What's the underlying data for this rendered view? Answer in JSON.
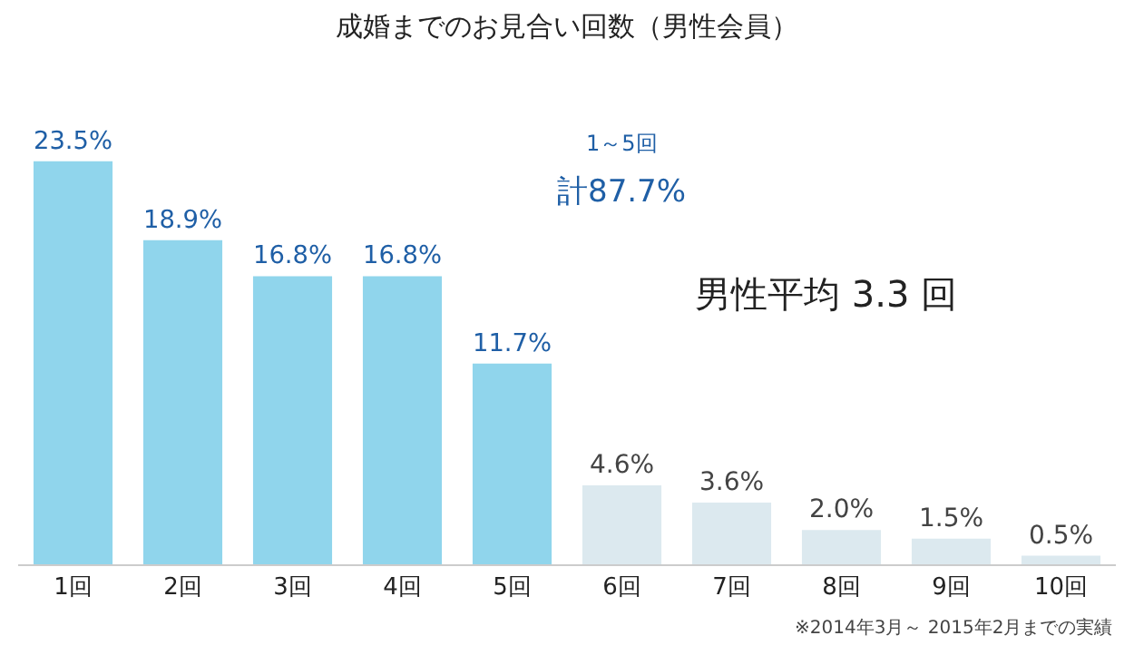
{
  "chart_data": {
    "type": "bar",
    "title": "成婚までのお見合い回数（男性会員）",
    "categories": [
      "1回",
      "2回",
      "3回",
      "4回",
      "5回",
      "6回",
      "7回",
      "8回",
      "9回",
      "10回"
    ],
    "values": [
      23.5,
      18.9,
      16.8,
      16.8,
      11.7,
      4.6,
      3.6,
      2.0,
      1.5,
      0.5
    ],
    "colors": [
      "#90d5ec",
      "#90d5ec",
      "#90d5ec",
      "#90d5ec",
      "#90d5ec",
      "#dce9ef",
      "#dce9ef",
      "#dce9ef",
      "#dce9ef",
      "#dce9ef"
    ],
    "value_labels": [
      "23.5%",
      "18.9%",
      "16.8%",
      "16.8%",
      "11.7%",
      "4.6%",
      "3.6%",
      "2.0%",
      "1.5%",
      "0.5%"
    ],
    "annotations": [
      "1～5回",
      "計87.7%",
      "男性平均 3.3 回",
      "※2014年3月～ 2015年2月までの実績"
    ],
    "legend": false
  }
}
